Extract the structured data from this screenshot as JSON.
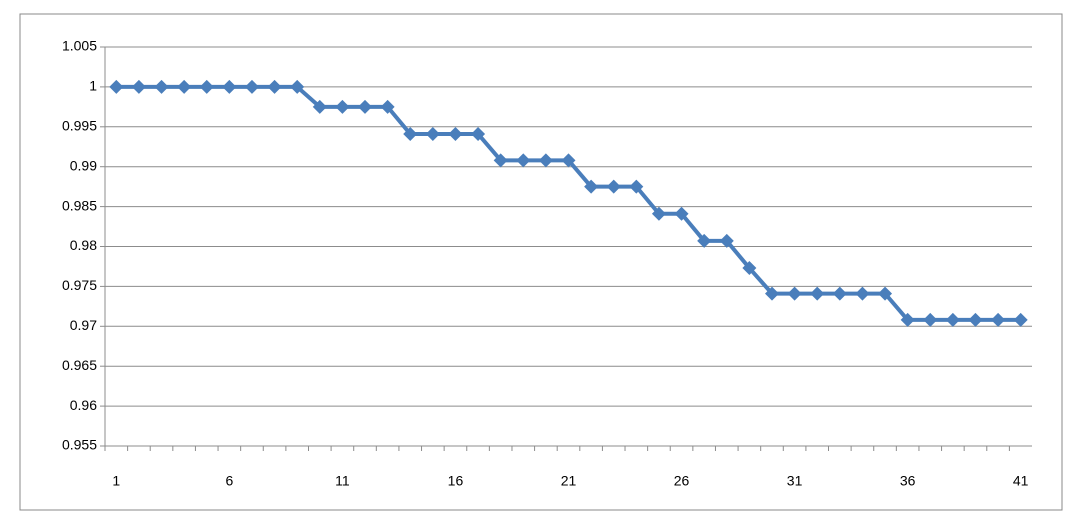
{
  "chart_data": {
    "type": "line",
    "categories": [
      1,
      null,
      null,
      null,
      null,
      6,
      null,
      null,
      null,
      null,
      11,
      null,
      null,
      null,
      null,
      16,
      null,
      null,
      null,
      null,
      21,
      null,
      null,
      null,
      null,
      26,
      null,
      null,
      null,
      null,
      31,
      null,
      null,
      null,
      null,
      36,
      null,
      null,
      null,
      null,
      41
    ],
    "series": [
      {
        "color": "#4a7ebb",
        "values": [
          1,
          1,
          1,
          1,
          1,
          1,
          1,
          1,
          1,
          0.9975,
          0.9975,
          0.9975,
          0.9975,
          0.9941,
          0.9941,
          0.9941,
          0.9941,
          0.9908,
          0.9908,
          0.9908,
          0.9908,
          0.9875,
          0.9875,
          0.9875,
          0.9841,
          0.9841,
          0.9807,
          0.9807,
          0.9773,
          0.9741,
          0.9741,
          0.9741,
          0.9741,
          0.9741,
          0.9741,
          0.9708,
          0.9708,
          0.9708,
          0.9708,
          0.9708,
          0.9708
        ]
      }
    ],
    "ylim": [
      0.955,
      1.005
    ],
    "yticks": [
      0.955,
      0.96,
      0.965,
      0.97,
      0.975,
      0.98,
      0.985,
      0.99,
      0.995,
      1,
      1.005
    ],
    "grid": true
  }
}
